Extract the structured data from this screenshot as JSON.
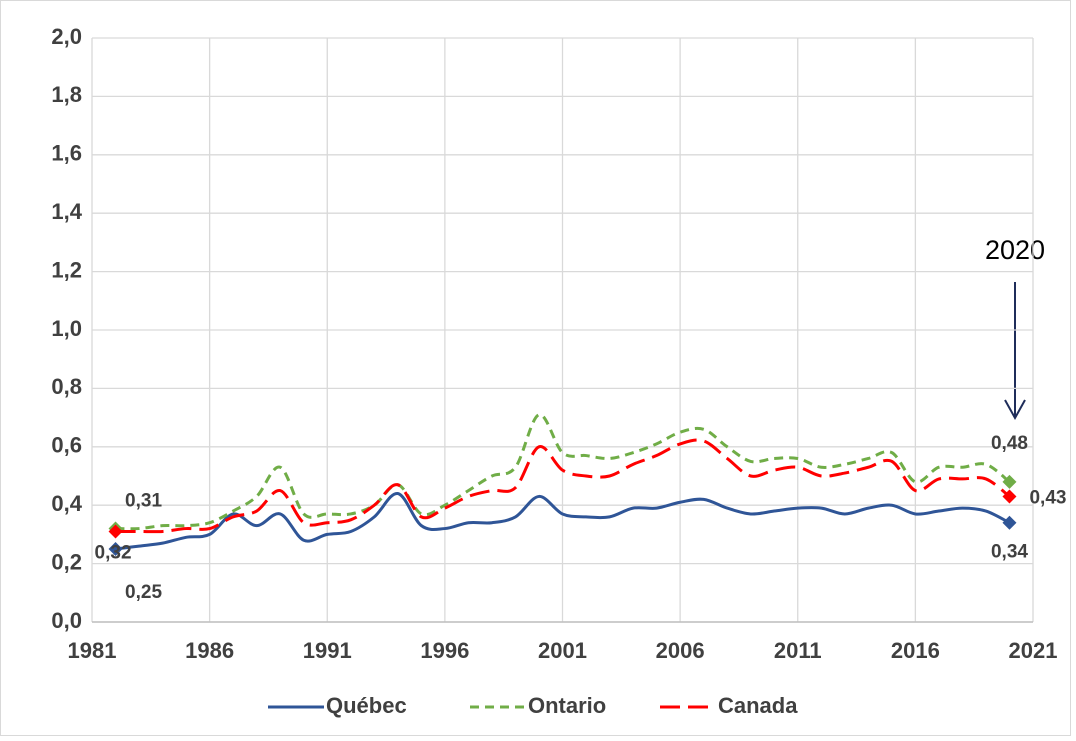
{
  "chart_data": {
    "type": "line",
    "annotation": "2020",
    "xlim": [
      1981,
      2021
    ],
    "xticks": [
      1981,
      1986,
      1991,
      1996,
      2001,
      2006,
      2011,
      2016,
      2021
    ],
    "ylim": [
      0,
      2
    ],
    "yticks": [
      {
        "value": 0,
        "label": "0,0"
      },
      {
        "value": 0.2,
        "label": "0,2"
      },
      {
        "value": 0.4,
        "label": "0,4"
      },
      {
        "value": 0.6,
        "label": "0,6"
      },
      {
        "value": 0.8,
        "label": "0,8"
      },
      {
        "value": 1,
        "label": "1,0"
      },
      {
        "value": 1.2,
        "label": "1,2"
      },
      {
        "value": 1.4,
        "label": "1,4"
      },
      {
        "value": 1.6,
        "label": "1,6"
      },
      {
        "value": 1.8,
        "label": "1,8"
      },
      {
        "value": 2,
        "label": "2,0"
      }
    ],
    "grid": true,
    "legend": "bottom",
    "x": [
      1982,
      1983,
      1984,
      1985,
      1986,
      1987,
      1988,
      1989,
      1990,
      1991,
      1992,
      1993,
      1994,
      1995,
      1996,
      1997,
      1998,
      1999,
      2000,
      2001,
      2002,
      2003,
      2004,
      2005,
      2006,
      2007,
      2008,
      2009,
      2010,
      2011,
      2012,
      2013,
      2014,
      2015,
      2016,
      2017,
      2018,
      2019,
      2020
    ],
    "series": [
      {
        "name": "Québec",
        "color": "#2f5597",
        "dash": "solid",
        "values": [
          0.25,
          0.26,
          0.27,
          0.29,
          0.3,
          0.37,
          0.33,
          0.37,
          0.28,
          0.3,
          0.31,
          0.36,
          0.44,
          0.33,
          0.32,
          0.34,
          0.34,
          0.36,
          0.43,
          0.37,
          0.36,
          0.36,
          0.39,
          0.39,
          0.41,
          0.42,
          0.39,
          0.37,
          0.38,
          0.39,
          0.39,
          0.37,
          0.39,
          0.4,
          0.37,
          0.38,
          0.39,
          0.38,
          0.34
        ],
        "value_labels": [
          "0,25",
          null,
          null,
          null,
          null,
          null,
          null,
          null,
          null,
          null,
          null,
          null,
          null,
          null,
          null,
          null,
          null,
          null,
          null,
          null,
          null,
          null,
          null,
          null,
          null,
          null,
          null,
          null,
          null,
          null,
          null,
          null,
          null,
          null,
          null,
          null,
          null,
          null,
          "0,34"
        ]
      },
      {
        "name": "Ontario",
        "color": "#70ad47",
        "dash": "short",
        "values": [
          0.32,
          0.32,
          0.33,
          0.33,
          0.34,
          0.38,
          0.43,
          0.53,
          0.37,
          0.37,
          0.37,
          0.4,
          0.47,
          0.37,
          0.4,
          0.45,
          0.5,
          0.53,
          0.71,
          0.58,
          0.57,
          0.56,
          0.58,
          0.61,
          0.65,
          0.66,
          0.6,
          0.55,
          0.56,
          0.56,
          0.53,
          0.54,
          0.56,
          0.58,
          0.48,
          0.53,
          0.53,
          0.54,
          0.48
        ],
        "value_labels": [
          "0,32",
          null,
          null,
          null,
          null,
          null,
          null,
          null,
          null,
          null,
          null,
          null,
          null,
          null,
          null,
          null,
          null,
          null,
          null,
          null,
          null,
          null,
          null,
          null,
          null,
          null,
          null,
          null,
          null,
          null,
          null,
          null,
          null,
          null,
          null,
          null,
          null,
          null,
          "0,48"
        ]
      },
      {
        "name": "Canada",
        "color": "#ff0000",
        "dash": "long",
        "values": [
          0.31,
          0.31,
          0.31,
          0.32,
          0.32,
          0.36,
          0.38,
          0.45,
          0.34,
          0.34,
          0.35,
          0.4,
          0.47,
          0.36,
          0.39,
          0.43,
          0.45,
          0.46,
          0.6,
          0.52,
          0.5,
          0.5,
          0.54,
          0.57,
          0.61,
          0.62,
          0.56,
          0.5,
          0.52,
          0.53,
          0.5,
          0.51,
          0.53,
          0.55,
          0.45,
          0.49,
          0.49,
          0.49,
          0.43
        ],
        "value_labels": [
          "0,31",
          null,
          null,
          null,
          null,
          null,
          null,
          null,
          null,
          null,
          null,
          null,
          null,
          null,
          null,
          null,
          null,
          null,
          null,
          null,
          null,
          null,
          null,
          null,
          null,
          null,
          null,
          null,
          null,
          null,
          null,
          null,
          null,
          null,
          null,
          null,
          null,
          null,
          "0,43"
        ]
      }
    ]
  }
}
